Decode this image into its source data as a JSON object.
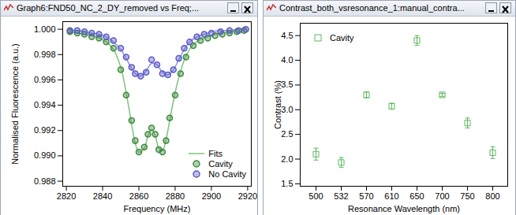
{
  "chart_data": [
    {
      "type": "scatter",
      "title": "Graph6:FND50_NC_2_DY_removed vs Freq;...",
      "x_label": "Frequency (MHz)",
      "y_label": "Normalised Fluorescence (a.u.)",
      "xlim": [
        2818,
        2922
      ],
      "xticks": [
        2820,
        2840,
        2860,
        2880,
        2900,
        2920
      ],
      "ylim": [
        0.9876,
        1.0006
      ],
      "yticks": [
        0.988,
        {
          "value": 0.99,
          "label": "0.990"
        },
        0.992,
        0.994,
        0.996,
        0.998,
        {
          "value": 1.0,
          "label": "1.000"
        }
      ],
      "legend": "bottom-right",
      "fit_label": "Fits",
      "series": [
        {
          "name": "Cavity",
          "color": "#3f8a3f",
          "marker": "circle",
          "fit_color": "#7cc47c",
          "x": [
            2822,
            2826,
            2830,
            2834,
            2838,
            2842,
            2846,
            2850,
            2853,
            2856,
            2858,
            2860,
            2863,
            2865,
            2867,
            2869,
            2871,
            2873,
            2875,
            2877,
            2880,
            2883,
            2886,
            2890,
            2894,
            2898,
            2902,
            2906,
            2910,
            2914,
            2918
          ],
          "values": [
            0.9998,
            0.9997,
            0.9996,
            0.9994,
            0.9993,
            0.999,
            0.9985,
            0.9968,
            0.9948,
            0.9928,
            0.9912,
            0.9903,
            0.9907,
            0.9917,
            0.9922,
            0.9917,
            0.9905,
            0.9903,
            0.9912,
            0.993,
            0.9948,
            0.9965,
            0.9978,
            0.9987,
            0.9991,
            0.9993,
            0.9995,
            0.9996,
            0.9997,
            0.9998,
            0.9999
          ],
          "fit": [
            0.9998,
            0.9997,
            0.9996,
            0.9995,
            0.9993,
            0.999,
            0.9984,
            0.997,
            0.995,
            0.9925,
            0.991,
            0.9903,
            0.9906,
            0.9916,
            0.9921,
            0.9916,
            0.9906,
            0.9904,
            0.9913,
            0.9928,
            0.995,
            0.9967,
            0.9979,
            0.9988,
            0.9992,
            0.9994,
            0.9996,
            0.9997,
            0.9998,
            0.9998,
            0.9999
          ]
        },
        {
          "name": "No Cavity",
          "color": "#5a5ac8",
          "marker": "circle",
          "fit_color": "#8f8fe0",
          "x": [
            2822,
            2826,
            2830,
            2834,
            2838,
            2842,
            2846,
            2850,
            2853,
            2856,
            2858,
            2861,
            2864,
            2867,
            2870,
            2873,
            2876,
            2879,
            2882,
            2885,
            2888,
            2892,
            2896,
            2900,
            2905,
            2910,
            2915,
            2919
          ],
          "values": [
            0.9999,
            0.9999,
            0.9998,
            0.9997,
            0.9996,
            0.9994,
            0.9991,
            0.9985,
            0.9978,
            0.997,
            0.9965,
            0.9963,
            0.9966,
            0.9976,
            0.9972,
            0.9965,
            0.9964,
            0.9968,
            0.9977,
            0.9985,
            0.999,
            0.9994,
            0.9996,
            0.9997,
            0.9998,
            0.9999,
            0.9999,
            1.0
          ],
          "fit": [
            0.9999,
            0.9999,
            0.9998,
            0.9997,
            0.9996,
            0.9994,
            0.999,
            0.9984,
            0.9977,
            0.9969,
            0.9965,
            0.9963,
            0.9967,
            0.9973,
            0.9972,
            0.9966,
            0.9964,
            0.9968,
            0.9976,
            0.9984,
            0.999,
            0.9994,
            0.9996,
            0.9998,
            0.9999,
            0.9999,
            1.0,
            1.0
          ]
        }
      ]
    },
    {
      "type": "scatter",
      "title": "Contrast_both_vsresonance_1:manual_contra...",
      "x_label": "Resonance Wavelength (nm)",
      "y_label": "Contrast (%)",
      "categories": [
        "500",
        "532",
        "570",
        "610",
        "650",
        "700",
        "750",
        "800"
      ],
      "ylim": [
        1.45,
        4.75
      ],
      "yticks": [
        1.5,
        {
          "value": 2,
          "label": "2.0"
        },
        2.5,
        {
          "value": 3,
          "label": "3.0"
        },
        3.5,
        {
          "value": 4,
          "label": "4.0"
        },
        4.5
      ],
      "legend": "top-left",
      "series": [
        {
          "name": "Cavity",
          "color": "#5cb85c",
          "marker": "square",
          "values": [
            2.1,
            1.93,
            3.3,
            3.07,
            4.4,
            3.3,
            2.73,
            2.13
          ],
          "errors": [
            0.12,
            0.1,
            0.06,
            0.06,
            0.1,
            0.03,
            0.1,
            0.12
          ]
        }
      ]
    }
  ]
}
